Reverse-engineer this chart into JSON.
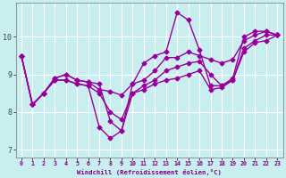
{
  "xlabel": "Windchill (Refroidissement éolien,°C)",
  "ylabel": "",
  "xlim": [
    -0.5,
    23.5
  ],
  "ylim": [
    6.8,
    10.9
  ],
  "yticks": [
    7,
    8,
    9,
    10
  ],
  "xticks": [
    0,
    1,
    2,
    3,
    4,
    5,
    6,
    7,
    8,
    9,
    10,
    11,
    12,
    13,
    14,
    15,
    16,
    17,
    18,
    19,
    20,
    21,
    22,
    23
  ],
  "bg_color": "#c8eef0",
  "line_color": "#990099",
  "grid_color": "#ffffff",
  "lines": [
    {
      "x": [
        0,
        1,
        2,
        3,
        4,
        5,
        6,
        7,
        8,
        9,
        10,
        11,
        12,
        13,
        14,
        15,
        16,
        17,
        18,
        19,
        20,
        21,
        22,
        23
      ],
      "y": [
        9.5,
        8.2,
        8.5,
        8.9,
        9.0,
        8.85,
        8.8,
        8.75,
        7.75,
        7.5,
        8.75,
        9.3,
        9.5,
        9.6,
        10.65,
        10.45,
        9.65,
        8.7,
        8.7,
        8.9,
        10.0,
        10.15,
        10.15,
        10.05
      ],
      "marker": "D",
      "markersize": 2.5,
      "linewidth": 1.0
    },
    {
      "x": [
        0,
        1,
        2,
        3,
        4,
        5,
        6,
        7,
        8,
        9,
        10,
        11,
        12,
        13,
        14,
        15,
        16,
        17,
        18,
        19,
        20,
        21,
        22,
        23
      ],
      "y": [
        9.5,
        8.2,
        8.5,
        8.9,
        9.0,
        8.85,
        8.8,
        8.6,
        8.55,
        8.45,
        8.75,
        8.85,
        9.1,
        9.45,
        9.45,
        9.6,
        9.5,
        9.4,
        9.3,
        9.4,
        9.9,
        10.05,
        10.15,
        10.05
      ],
      "marker": "D",
      "markersize": 2.5,
      "linewidth": 1.0
    },
    {
      "x": [
        0,
        1,
        2,
        3,
        4,
        5,
        6,
        7,
        8,
        9,
        10,
        11,
        12,
        13,
        14,
        15,
        16,
        17,
        18,
        19,
        20,
        21,
        22,
        23
      ],
      "y": [
        9.5,
        8.2,
        8.5,
        8.85,
        8.85,
        8.75,
        8.7,
        8.5,
        8.0,
        7.8,
        8.5,
        8.7,
        8.85,
        9.1,
        9.2,
        9.3,
        9.35,
        9.0,
        8.7,
        8.85,
        9.7,
        9.9,
        10.05,
        10.05
      ],
      "marker": "D",
      "markersize": 2.5,
      "linewidth": 1.0
    },
    {
      "x": [
        0,
        1,
        2,
        3,
        4,
        5,
        6,
        7,
        8,
        9,
        10,
        11,
        12,
        13,
        14,
        15,
        16,
        17,
        18,
        19,
        20,
        21,
        22,
        23
      ],
      "y": [
        9.5,
        8.2,
        8.5,
        8.85,
        8.85,
        8.75,
        8.7,
        7.6,
        7.3,
        7.5,
        8.5,
        8.6,
        8.75,
        8.85,
        8.9,
        9.0,
        9.1,
        8.6,
        8.65,
        8.85,
        9.6,
        9.85,
        9.9,
        10.05
      ],
      "marker": "D",
      "markersize": 2.5,
      "linewidth": 1.0
    }
  ]
}
